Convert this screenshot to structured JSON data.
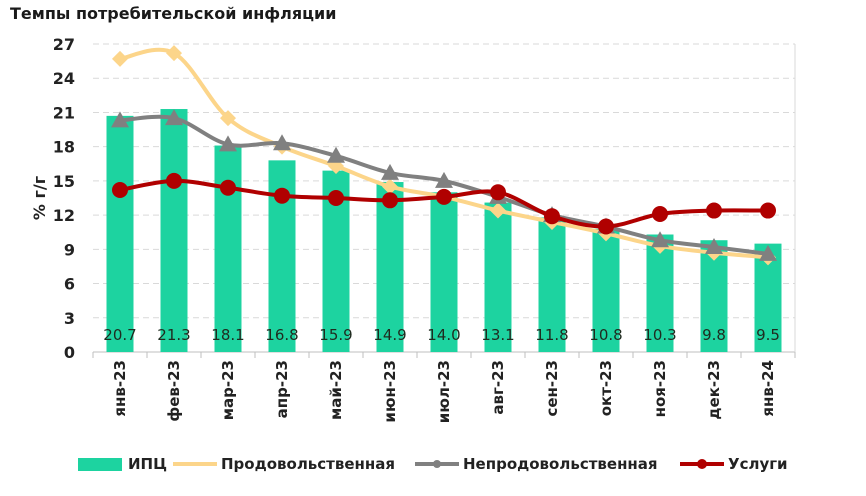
{
  "chart_data": {
    "type": "bar+line",
    "title": "Темпы потребительской инфляции",
    "ylabel": "% г/г",
    "ylim": [
      0,
      27
    ],
    "yticks": [
      0,
      3,
      6,
      9,
      12,
      15,
      18,
      21,
      24,
      27
    ],
    "grid": true,
    "legend_position": "bottom",
    "categories": [
      "янв-23",
      "фев-23",
      "мар-23",
      "апр-23",
      "май-23",
      "июн-23",
      "июл-23",
      "авг-23",
      "сен-23",
      "окт-23",
      "ноя-23",
      "дек-23",
      "янв-24"
    ],
    "series": [
      {
        "name": "ИПЦ",
        "kind": "bar",
        "color": "#1dd3a0",
        "values": [
          20.7,
          21.3,
          18.1,
          16.8,
          15.9,
          14.9,
          14.0,
          13.1,
          11.8,
          10.8,
          10.3,
          9.8,
          9.5
        ],
        "labels": [
          "20.7",
          "21.3",
          "18.1",
          "16.8",
          "15.9",
          "14.9",
          "14.0",
          "13.1",
          "11.8",
          "10.8",
          "10.3",
          "9.8",
          "9.5"
        ]
      },
      {
        "name": "Продовольственная",
        "kind": "line",
        "color": "#fcd58a",
        "marker": "diamond",
        "values": [
          25.7,
          26.2,
          20.5,
          18.0,
          16.3,
          14.5,
          13.6,
          12.4,
          11.4,
          10.4,
          9.3,
          8.7,
          8.3
        ]
      },
      {
        "name": "Непродовольственная",
        "kind": "line",
        "color": "#808080",
        "marker": "triangle",
        "values": [
          20.3,
          20.5,
          18.2,
          18.3,
          17.2,
          15.7,
          15.0,
          13.6,
          12.0,
          11.0,
          9.8,
          9.2,
          8.6
        ]
      },
      {
        "name": "Услуги",
        "kind": "line",
        "color": "#b00000",
        "marker": "circle",
        "values": [
          14.2,
          15.0,
          14.4,
          13.7,
          13.5,
          13.3,
          13.6,
          14.0,
          11.9,
          11.0,
          12.1,
          12.4,
          12.4
        ]
      }
    ]
  }
}
